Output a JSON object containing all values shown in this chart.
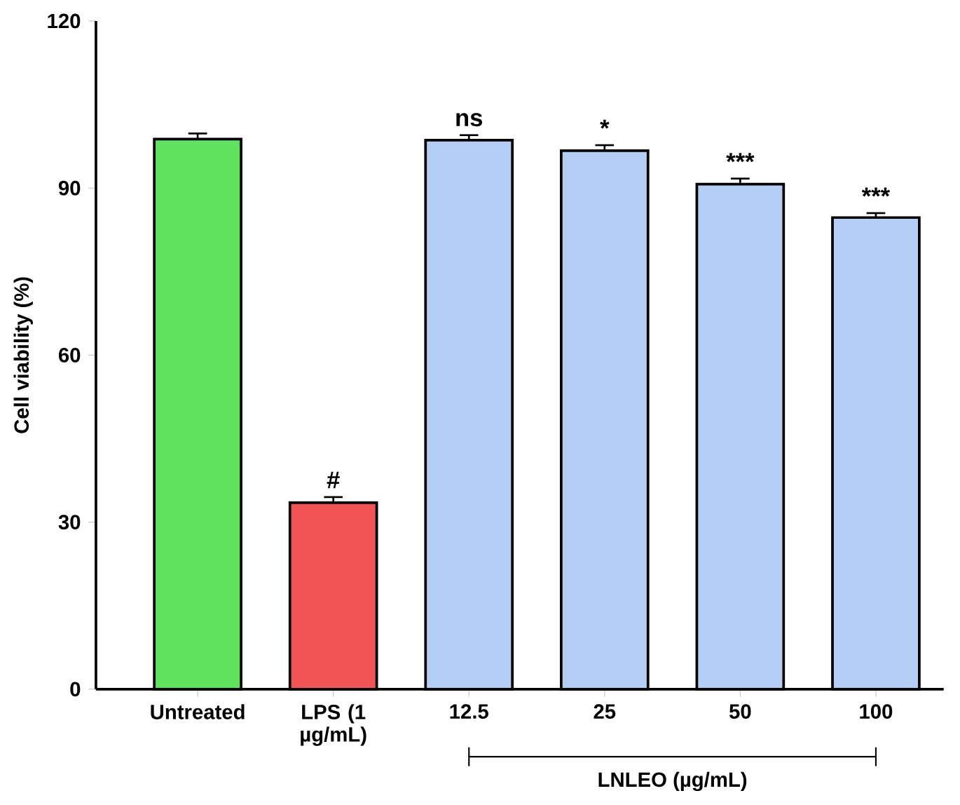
{
  "chart_data": {
    "type": "bar",
    "ylabel": "Cell viability (%)",
    "categories": [
      "Untreated",
      "LPS (1 µg/mL)",
      "12.5",
      "25",
      "50",
      "100"
    ],
    "values": [
      98.8,
      33.5,
      98.6,
      96.7,
      90.7,
      84.7
    ],
    "errors": [
      1.0,
      1.0,
      0.9,
      1.0,
      1.0,
      0.8
    ],
    "colors": [
      "#5fe35f",
      "#f05454",
      "#b3cdf5",
      "#b3cdf5",
      "#b3cdf5",
      "#b3cdf5"
    ],
    "ylim": [
      0,
      120
    ],
    "yticks": [
      0,
      30,
      60,
      90,
      120
    ],
    "grid": false,
    "annotations": [
      {
        "text": "#",
        "x": "LPS (1 µg/mL)",
        "y": 33.5
      },
      {
        "text": "ns",
        "x": "12.5",
        "y": 98.6
      },
      {
        "text": "*",
        "x": "25",
        "y": 96.7
      },
      {
        "text": "***",
        "x": "50",
        "y": 90.7
      },
      {
        "text": "***",
        "x": "100",
        "y": 84.7
      },
      "LNLEO (µg/mL)"
    ]
  }
}
